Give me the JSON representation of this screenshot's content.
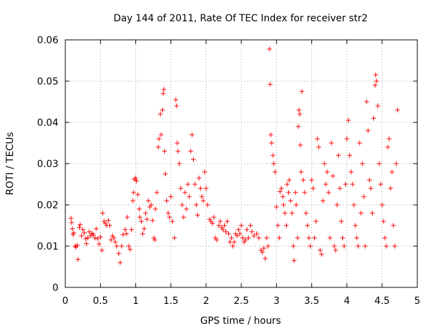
{
  "chart_data": {
    "type": "scatter",
    "title": "Day 144 of 2011, Rate Of TEC Index for receiver str2",
    "xlabel": "GPS time / hours",
    "ylabel": "ROTI / TECUs",
    "xlim": [
      0,
      5
    ],
    "ylim": [
      0,
      0.06
    ],
    "x_ticks": [
      0,
      0.5,
      1,
      1.5,
      2,
      2.5,
      3,
      3.5,
      4,
      4.5,
      5
    ],
    "x_tick_labels": [
      "0",
      "0.5",
      "1",
      "1.5",
      "2",
      "2.5",
      "3",
      "3.5",
      "4",
      "4.5",
      "5"
    ],
    "y_ticks": [
      0,
      0.01,
      0.02,
      0.03,
      0.04,
      0.05,
      0.06
    ],
    "y_tick_labels": [
      "0",
      "0.01",
      "0.02",
      "0.03",
      "0.04",
      "0.05",
      "0.06"
    ],
    "grid": true,
    "marker": "+",
    "series": [
      {
        "name": "str2",
        "color": "#ff0000",
        "points": [
          [
            0.08,
            0.0168
          ],
          [
            0.09,
            0.0157
          ],
          [
            0.1,
            0.0142
          ],
          [
            0.11,
            0.0128
          ],
          [
            0.12,
            0.0132
          ],
          [
            0.14,
            0.01
          ],
          [
            0.15,
            0.0098
          ],
          [
            0.17,
            0.0102
          ],
          [
            0.18,
            0.0068
          ],
          [
            0.2,
            0.0145
          ],
          [
            0.21,
            0.0152
          ],
          [
            0.23,
            0.0125
          ],
          [
            0.25,
            0.014
          ],
          [
            0.27,
            0.0132
          ],
          [
            0.29,
            0.0118
          ],
          [
            0.3,
            0.0106
          ],
          [
            0.32,
            0.012
          ],
          [
            0.34,
            0.0135
          ],
          [
            0.36,
            0.0125
          ],
          [
            0.38,
            0.0131
          ],
          [
            0.4,
            0.0128
          ],
          [
            0.42,
            0.012
          ],
          [
            0.44,
            0.0142
          ],
          [
            0.46,
            0.0118
          ],
          [
            0.48,
            0.0105
          ],
          [
            0.5,
            0.0122
          ],
          [
            0.52,
            0.009
          ],
          [
            0.53,
            0.018
          ],
          [
            0.55,
            0.016
          ],
          [
            0.57,
            0.0155
          ],
          [
            0.59,
            0.015
          ],
          [
            0.61,
            0.0162
          ],
          [
            0.63,
            0.015
          ],
          [
            0.65,
            0.0115
          ],
          [
            0.67,
            0.0125
          ],
          [
            0.69,
            0.012
          ],
          [
            0.71,
            0.011
          ],
          [
            0.73,
            0.01
          ],
          [
            0.76,
            0.0082
          ],
          [
            0.78,
            0.006
          ],
          [
            0.8,
            0.01
          ],
          [
            0.82,
            0.0128
          ],
          [
            0.85,
            0.014
          ],
          [
            0.87,
            0.013
          ],
          [
            0.88,
            0.017
          ],
          [
            0.9,
            0.01
          ],
          [
            0.92,
            0.0092
          ],
          [
            0.94,
            0.014
          ],
          [
            0.96,
            0.021
          ],
          [
            0.97,
            0.023
          ],
          [
            0.98,
            0.0262
          ],
          [
            1.0,
            0.0265
          ],
          [
            1.01,
            0.0258
          ],
          [
            1.03,
            0.0225
          ],
          [
            1.05,
            0.019
          ],
          [
            1.06,
            0.017
          ],
          [
            1.08,
            0.016
          ],
          [
            1.1,
            0.013
          ],
          [
            1.12,
            0.0142
          ],
          [
            1.14,
            0.018
          ],
          [
            1.16,
            0.0165
          ],
          [
            1.18,
            0.021
          ],
          [
            1.2,
            0.0195
          ],
          [
            1.22,
            0.02
          ],
          [
            1.24,
            0.0162
          ],
          [
            1.26,
            0.012
          ],
          [
            1.27,
            0.0115
          ],
          [
            1.28,
            0.019
          ],
          [
            1.3,
            0.023
          ],
          [
            1.32,
            0.034
          ],
          [
            1.33,
            0.036
          ],
          [
            1.35,
            0.042
          ],
          [
            1.36,
            0.037
          ],
          [
            1.38,
            0.043
          ],
          [
            1.39,
            0.047
          ],
          [
            1.4,
            0.048
          ],
          [
            1.41,
            0.033
          ],
          [
            1.42,
            0.0275
          ],
          [
            1.44,
            0.021
          ],
          [
            1.46,
            0.018
          ],
          [
            1.48,
            0.017
          ],
          [
            1.5,
            0.022
          ],
          [
            1.52,
            0.016
          ],
          [
            1.55,
            0.012
          ],
          [
            1.57,
            0.0455
          ],
          [
            1.58,
            0.044
          ],
          [
            1.59,
            0.035
          ],
          [
            1.6,
            0.033
          ],
          [
            1.62,
            0.03
          ],
          [
            1.64,
            0.024
          ],
          [
            1.66,
            0.02
          ],
          [
            1.68,
            0.017
          ],
          [
            1.7,
            0.023
          ],
          [
            1.72,
            0.019
          ],
          [
            1.74,
            0.025
          ],
          [
            1.76,
            0.022
          ],
          [
            1.78,
            0.033
          ],
          [
            1.8,
            0.037
          ],
          [
            1.82,
            0.031
          ],
          [
            1.84,
            0.025
          ],
          [
            1.86,
            0.02
          ],
          [
            1.88,
            0.0175
          ],
          [
            1.9,
            0.0265
          ],
          [
            1.92,
            0.024
          ],
          [
            1.94,
            0.022
          ],
          [
            1.96,
            0.021
          ],
          [
            1.98,
            0.028
          ],
          [
            2.0,
            0.024
          ],
          [
            2.02,
            0.02
          ],
          [
            2.05,
            0.0165
          ],
          [
            2.07,
            0.016
          ],
          [
            2.09,
            0.0155
          ],
          [
            2.11,
            0.017
          ],
          [
            2.13,
            0.012
          ],
          [
            2.15,
            0.0115
          ],
          [
            2.18,
            0.015
          ],
          [
            2.2,
            0.016
          ],
          [
            2.22,
            0.0145
          ],
          [
            2.24,
            0.014
          ],
          [
            2.26,
            0.015
          ],
          [
            2.28,
            0.0135
          ],
          [
            2.3,
            0.016
          ],
          [
            2.32,
            0.013
          ],
          [
            2.34,
            0.011
          ],
          [
            2.36,
            0.012
          ],
          [
            2.38,
            0.01
          ],
          [
            2.4,
            0.011
          ],
          [
            2.42,
            0.013
          ],
          [
            2.44,
            0.0125
          ],
          [
            2.46,
            0.014
          ],
          [
            2.48,
            0.013
          ],
          [
            2.5,
            0.015
          ],
          [
            2.52,
            0.012
          ],
          [
            2.54,
            0.011
          ],
          [
            2.56,
            0.0115
          ],
          [
            2.58,
            0.014
          ],
          [
            2.6,
            0.012
          ],
          [
            2.63,
            0.015
          ],
          [
            2.65,
            0.0135
          ],
          [
            2.68,
            0.0125
          ],
          [
            2.72,
            0.013
          ],
          [
            2.75,
            0.012
          ],
          [
            2.78,
            0.009
          ],
          [
            2.8,
            0.0085
          ],
          [
            2.82,
            0.0095
          ],
          [
            2.84,
            0.007
          ],
          [
            2.86,
            0.012
          ],
          [
            2.88,
            0.01
          ],
          [
            2.9,
            0.0578
          ],
          [
            2.91,
            0.0492
          ],
          [
            2.92,
            0.037
          ],
          [
            2.93,
            0.035
          ],
          [
            2.95,
            0.032
          ],
          [
            2.96,
            0.03
          ],
          [
            2.98,
            0.028
          ],
          [
            3.0,
            0.0195
          ],
          [
            3.02,
            0.015
          ],
          [
            3.04,
            0.012
          ],
          [
            3.05,
            0.0232
          ],
          [
            3.07,
            0.024
          ],
          [
            3.09,
            0.022
          ],
          [
            3.1,
            0.02
          ],
          [
            3.12,
            0.018
          ],
          [
            3.14,
            0.015
          ],
          [
            3.15,
            0.025
          ],
          [
            3.17,
            0.023
          ],
          [
            3.18,
            0.026
          ],
          [
            3.2,
            0.021
          ],
          [
            3.22,
            0.018
          ],
          [
            3.24,
            0.01
          ],
          [
            3.25,
            0.0065
          ],
          [
            3.27,
            0.023
          ],
          [
            3.28,
            0.02
          ],
          [
            3.3,
            0.012
          ],
          [
            3.31,
            0.039
          ],
          [
            3.32,
            0.043
          ],
          [
            3.33,
            0.042
          ],
          [
            3.34,
            0.0345
          ],
          [
            3.35,
            0.028
          ],
          [
            3.36,
            0.0475
          ],
          [
            3.38,
            0.026
          ],
          [
            3.4,
            0.023
          ],
          [
            3.42,
            0.018
          ],
          [
            3.44,
            0.015
          ],
          [
            3.46,
            0.012
          ],
          [
            3.48,
            0.01
          ],
          [
            3.5,
            0.026
          ],
          [
            3.52,
            0.024
          ],
          [
            3.54,
            0.012
          ],
          [
            3.56,
            0.016
          ],
          [
            3.58,
            0.036
          ],
          [
            3.6,
            0.034
          ],
          [
            3.62,
            0.009
          ],
          [
            3.64,
            0.008
          ],
          [
            3.66,
            0.021
          ],
          [
            3.68,
            0.03
          ],
          [
            3.7,
            0.025
          ],
          [
            3.72,
            0.028
          ],
          [
            3.74,
            0.023
          ],
          [
            3.76,
            0.012
          ],
          [
            3.78,
            0.035
          ],
          [
            3.8,
            0.027
          ],
          [
            3.82,
            0.01
          ],
          [
            3.84,
            0.009
          ],
          [
            3.86,
            0.02
          ],
          [
            3.88,
            0.032
          ],
          [
            3.9,
            0.024
          ],
          [
            3.92,
            0.016
          ],
          [
            3.94,
            0.012
          ],
          [
            3.96,
            0.01
          ],
          [
            3.98,
            0.025
          ],
          [
            4.0,
            0.036
          ],
          [
            4.02,
            0.0405
          ],
          [
            4.04,
            0.032
          ],
          [
            4.06,
            0.028
          ],
          [
            4.08,
            0.025
          ],
          [
            4.1,
            0.02
          ],
          [
            4.12,
            0.015
          ],
          [
            4.14,
            0.012
          ],
          [
            4.16,
            0.01
          ],
          [
            4.18,
            0.035
          ],
          [
            4.2,
            0.018
          ],
          [
            4.22,
            0.03
          ],
          [
            4.24,
            0.022
          ],
          [
            4.26,
            0.01
          ],
          [
            4.28,
            0.045
          ],
          [
            4.3,
            0.038
          ],
          [
            4.32,
            0.026
          ],
          [
            4.34,
            0.024
          ],
          [
            4.36,
            0.018
          ],
          [
            4.38,
            0.041
          ],
          [
            4.4,
            0.049
          ],
          [
            4.41,
            0.0515
          ],
          [
            4.42,
            0.05
          ],
          [
            4.44,
            0.044
          ],
          [
            4.46,
            0.03
          ],
          [
            4.48,
            0.025
          ],
          [
            4.5,
            0.02
          ],
          [
            4.52,
            0.016
          ],
          [
            4.54,
            0.012
          ],
          [
            4.56,
            0.01
          ],
          [
            4.58,
            0.034
          ],
          [
            4.6,
            0.036
          ],
          [
            4.62,
            0.024
          ],
          [
            4.64,
            0.028
          ],
          [
            4.66,
            0.015
          ],
          [
            4.68,
            0.01
          ],
          [
            4.7,
            0.03
          ],
          [
            4.72,
            0.043
          ]
        ]
      }
    ]
  }
}
